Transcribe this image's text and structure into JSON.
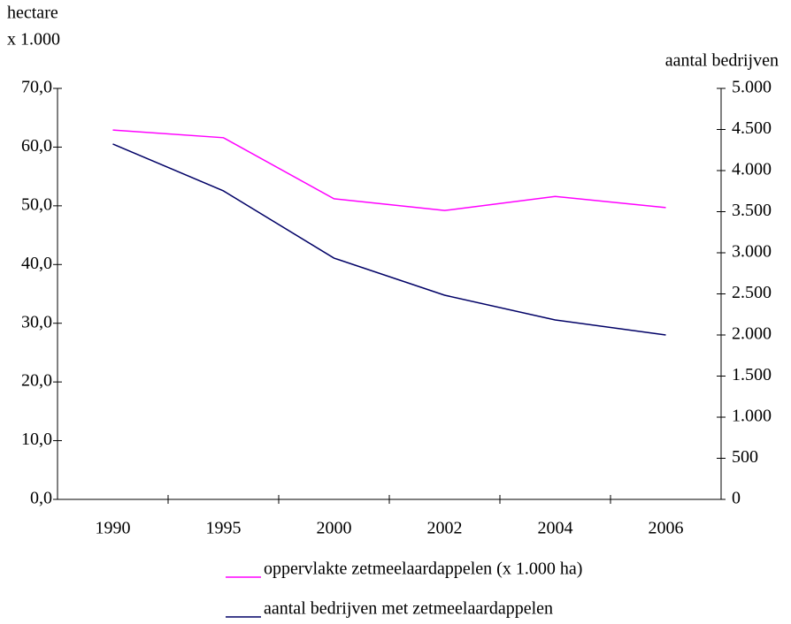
{
  "chart_data": {
    "type": "line",
    "y_label": [
      "hectare",
      "x 1.000"
    ],
    "y2_label": "aantal bedrijven",
    "categories": [
      "1990",
      "1995",
      "2000",
      "2002",
      "2004",
      "2006"
    ],
    "series": [
      {
        "name": "oppervlakte zetmeelaardappelen (x 1.000 ha)",
        "color": "#ff00ff",
        "values": [
          62.9,
          61.6,
          51.2,
          49.2,
          51.6,
          49.7
        ]
      },
      {
        "name": "aantal bedrijven met zetmeelaardappelen",
        "color": "#000066",
        "axis": "y2",
        "values": [
          4323,
          3753,
          2935,
          2484,
          2183,
          2000
        ]
      }
    ],
    "ylim": [
      0,
      70
    ],
    "yticks": [
      {
        "value": 0,
        "label": "0,0"
      },
      {
        "value": 10,
        "label": "10,0"
      },
      {
        "value": 20,
        "label": "20,0"
      },
      {
        "value": 30,
        "label": "30,0"
      },
      {
        "value": 40,
        "label": "40,0"
      },
      {
        "value": 50,
        "label": "50,0"
      },
      {
        "value": 60,
        "label": "60,0"
      },
      {
        "value": 70,
        "label": "70,0"
      }
    ],
    "y2lim": [
      0,
      5000
    ],
    "y2ticks": [
      0,
      500,
      {
        "value": 1000,
        "label": "1.000"
      },
      {
        "value": 1500,
        "label": "1.500"
      },
      {
        "value": 2000,
        "label": "2.000"
      },
      {
        "value": 2500,
        "label": "2.500"
      },
      {
        "value": 3000,
        "label": "3.000"
      },
      {
        "value": 3500,
        "label": "3.500"
      },
      {
        "value": 4000,
        "label": "4.000"
      },
      {
        "value": 4500,
        "label": "4.500"
      },
      {
        "value": 5000,
        "label": "5.000"
      }
    ],
    "grid": false
  }
}
